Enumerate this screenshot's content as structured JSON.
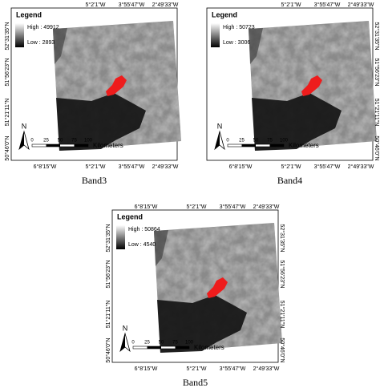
{
  "panels": [
    {
      "caption": "Band3",
      "legend": {
        "title": "Legend",
        "high": "High : 49912",
        "low": "Low : 2893"
      },
      "top_labels": [
        "5°2'1\"W",
        "3°55'47\"W",
        "2°49'33\"W"
      ],
      "bottom_labels": [
        "6°8'15\"W",
        "5°2'1\"W",
        "3°55'47\"W",
        "2°49'33\"W"
      ],
      "left_labels": [
        "52°31'35\"N",
        "51°56'23\"N",
        "51°21'11\"N",
        "50°46'0\"N"
      ],
      "north": "N",
      "scale": {
        "ticks": [
          "0",
          "25",
          "50",
          "75",
          "100"
        ],
        "unit": "Kilometers"
      }
    },
    {
      "caption": "Band4",
      "legend": {
        "title": "Legend",
        "high": "High : 50723",
        "low": "Low : 3006"
      },
      "top_labels": [
        "5°2'1\"W",
        "3°55'47\"W",
        "2°49'33\"W"
      ],
      "bottom_labels": [
        "6°8'15\"W",
        "5°2'1\"W",
        "3°55'47\"W",
        "2°49'33\"W"
      ],
      "right_labels": [
        "52°31'35\"N",
        "51°56'23\"N",
        "51°21'11\"N",
        "50°46'0\"N"
      ],
      "north": "N",
      "scale": {
        "ticks": [
          "0",
          "25",
          "50",
          "75",
          "100"
        ],
        "unit": "Kilometers"
      }
    },
    {
      "caption": "Band5",
      "legend": {
        "title": "Legend",
        "high": "High : 50864",
        "low": "Low : 4540"
      },
      "top_labels": [
        "6°8'15\"W",
        "5°2'1\"W",
        "3°55'47\"W",
        "2°49'33\"W"
      ],
      "bottom_labels": [
        "6°8'15\"W",
        "5°2'1\"W",
        "3°55'47\"W",
        "2°49'33\"W"
      ],
      "left_labels": [
        "52°31'35\"N",
        "51°56'23\"N",
        "51°21'11\"N",
        "50°46'0\"N"
      ],
      "right_labels": [
        "52°31'35\"N",
        "51°56'23\"N",
        "51°21'11\"N",
        "50°46'0\"N"
      ],
      "north": "N",
      "scale": {
        "ticks": [
          "0",
          "25",
          "50",
          "75",
          "100"
        ],
        "unit": "Kilometers"
      }
    }
  ]
}
